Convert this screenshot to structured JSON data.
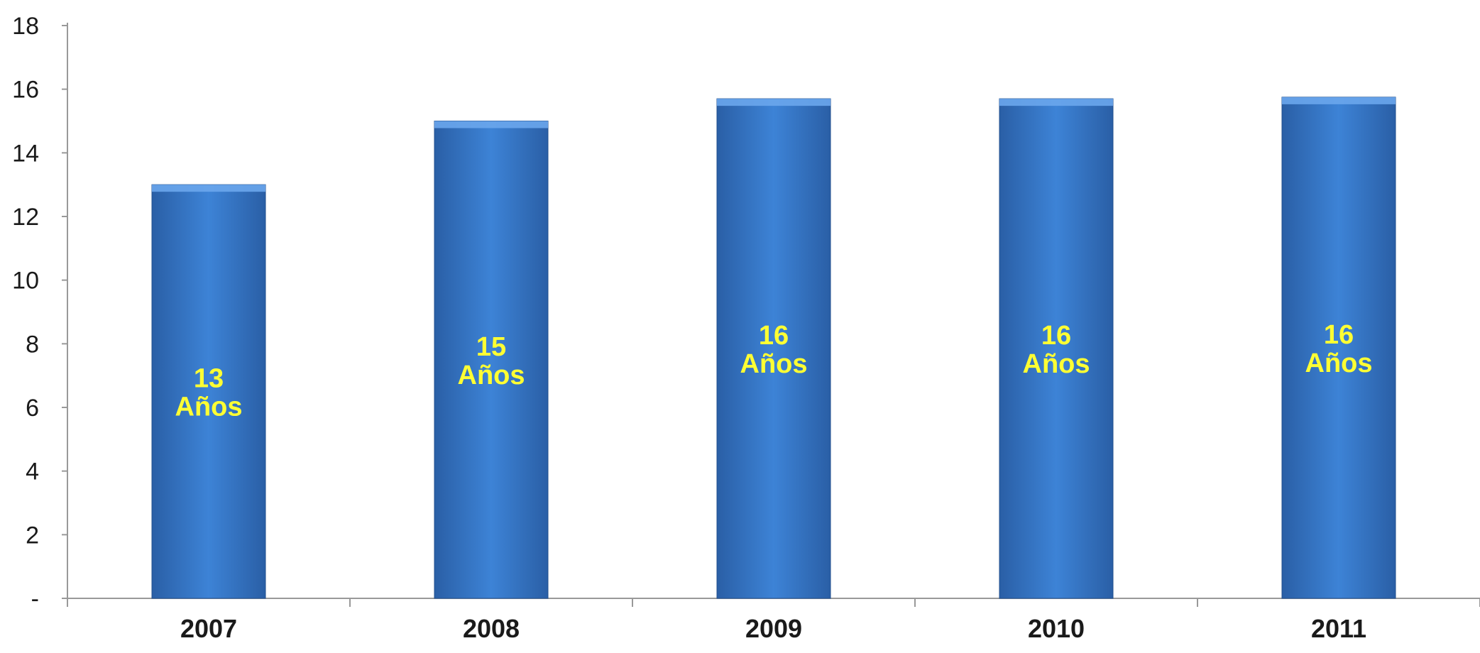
{
  "chart_data": {
    "type": "bar",
    "categories": [
      "2007",
      "2008",
      "2009",
      "2010",
      "2011"
    ],
    "values": [
      13,
      15,
      15.7,
      15.7,
      15.75
    ],
    "data_labels": [
      [
        "13",
        "Años"
      ],
      [
        "15",
        "Años"
      ],
      [
        "16",
        "Años"
      ],
      [
        "16",
        "Años"
      ],
      [
        "16",
        "Años"
      ]
    ],
    "yticks": [
      "-",
      "2",
      "4",
      "6",
      "8",
      "10",
      "12",
      "14",
      "16",
      "18"
    ],
    "ylim": [
      0,
      18
    ],
    "grid": false,
    "legend": "none",
    "colors": {
      "bar_light": "#3d83d6",
      "bar_dark": "#2a5fa6",
      "bar_edge": "#214f8e",
      "label": "#ffff33",
      "axis": "#999999"
    }
  }
}
